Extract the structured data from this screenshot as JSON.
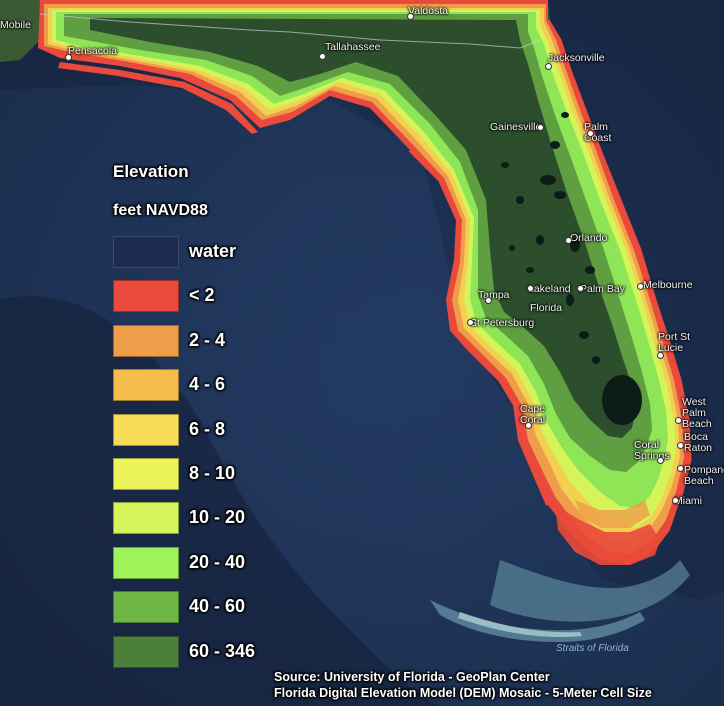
{
  "legend": {
    "title": "Elevation",
    "subtitle": "feet NAVD88",
    "items": [
      {
        "label": "water",
        "color": "#1c2d4f"
      },
      {
        "label": "< 2",
        "color": "#e94a3b"
      },
      {
        "label": "2 - 4",
        "color": "#ee9e4a"
      },
      {
        "label": "4 - 6",
        "color": "#f3bc4b"
      },
      {
        "label": "6 - 8",
        "color": "#f6dd55"
      },
      {
        "label": "8 - 10",
        "color": "#ecf25a"
      },
      {
        "label": "10 - 20",
        "color": "#d5f45a"
      },
      {
        "label": "20 - 40",
        "color": "#9ef35a"
      },
      {
        "label": "40 - 60",
        "color": "#6eb746"
      },
      {
        "label": "60 - 346",
        "color": "#4d7f3c"
      }
    ]
  },
  "cities": [
    {
      "name": "Mobile",
      "dot": false
    },
    {
      "name": "Pensacola",
      "dot": true
    },
    {
      "name": "Valdosta",
      "dot": true
    },
    {
      "name": "Tallahassee",
      "dot": true
    },
    {
      "name": "Jacksonville",
      "dot": true
    },
    {
      "name": "Gainesville",
      "dot": true
    },
    {
      "name": "Palm Coast",
      "dot": true
    },
    {
      "name": "Orlando",
      "dot": true
    },
    {
      "name": "Melbourne",
      "dot": true
    },
    {
      "name": "Tampa",
      "dot": true
    },
    {
      "name": "Lakeland",
      "dot": true
    },
    {
      "name": "Palm Bay",
      "dot": true
    },
    {
      "name": "Florida",
      "dot": false
    },
    {
      "name": "St Petersburg",
      "dot": true
    },
    {
      "name": "Port St Lucie",
      "dot": true
    },
    {
      "name": "Cape Coral",
      "dot": true
    },
    {
      "name": "West Palm Beach",
      "dot": true
    },
    {
      "name": "Boca Raton",
      "dot": true
    },
    {
      "name": "Coral Springs",
      "dot": true
    },
    {
      "name": "Pompano Beach",
      "dot": true
    },
    {
      "name": "Miami",
      "dot": true
    }
  ],
  "water_label": "Straits of Florida",
  "source": {
    "line1": "Source: University of Florida - GeoPlan Center",
    "line2": "Florida Digital Elevation Model (DEM) Mosaic - 5-Meter Cell Size"
  },
  "colors": {
    "ocean": "#1b2d4c",
    "land_upland": "#2c4e2c",
    "inland_water": "#0c1c16"
  }
}
